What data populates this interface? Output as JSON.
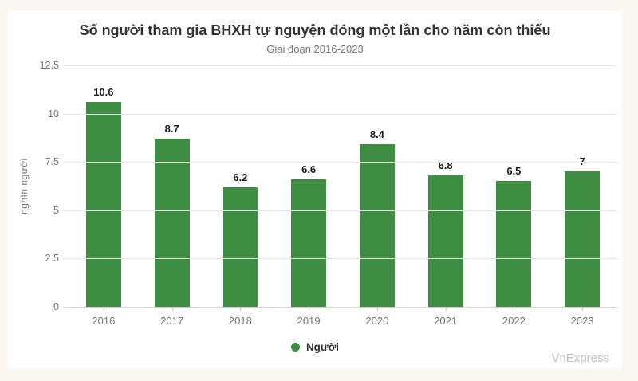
{
  "chart_data": {
    "type": "bar",
    "title": "Số người tham gia BHXH tự nguyện đóng một lần cho năm còn thiếu",
    "subtitle": "Giai đoạn 2016-2023",
    "categories": [
      "2016",
      "2017",
      "2018",
      "2019",
      "2020",
      "2021",
      "2022",
      "2023"
    ],
    "values": [
      10.6,
      8.7,
      6.2,
      6.6,
      8.4,
      6.8,
      6.5,
      7
    ],
    "value_labels": [
      "10.6",
      "8.7",
      "6.2",
      "6.6",
      "8.4",
      "6.8",
      "6.5",
      "7"
    ],
    "xlabel": "",
    "ylabel": "nghìn người",
    "ylim": [
      0,
      12.5
    ],
    "yticks": [
      12.5,
      10,
      7.5,
      5,
      2.5,
      0
    ],
    "ytick_labels": [
      "12.5",
      "10",
      "7.5",
      "5",
      "2.5",
      "0"
    ],
    "grid": true,
    "legend": {
      "position": "bottom",
      "entries": [
        {
          "label": "Người",
          "color": "#3e8c42"
        }
      ]
    },
    "bar_color": "#3e8c42"
  },
  "watermark": "VnExpress",
  "colors": {
    "bar": "#3e8c42",
    "page_background": "#faf7f1",
    "card_background": "#ffffff",
    "gridline": "#e6e6e6",
    "axis_line": "#cfcfcf",
    "title_text": "#333333",
    "muted_text": "#757575",
    "value_text": "#1a1a1a",
    "watermark_text": "#bdbdbd"
  }
}
